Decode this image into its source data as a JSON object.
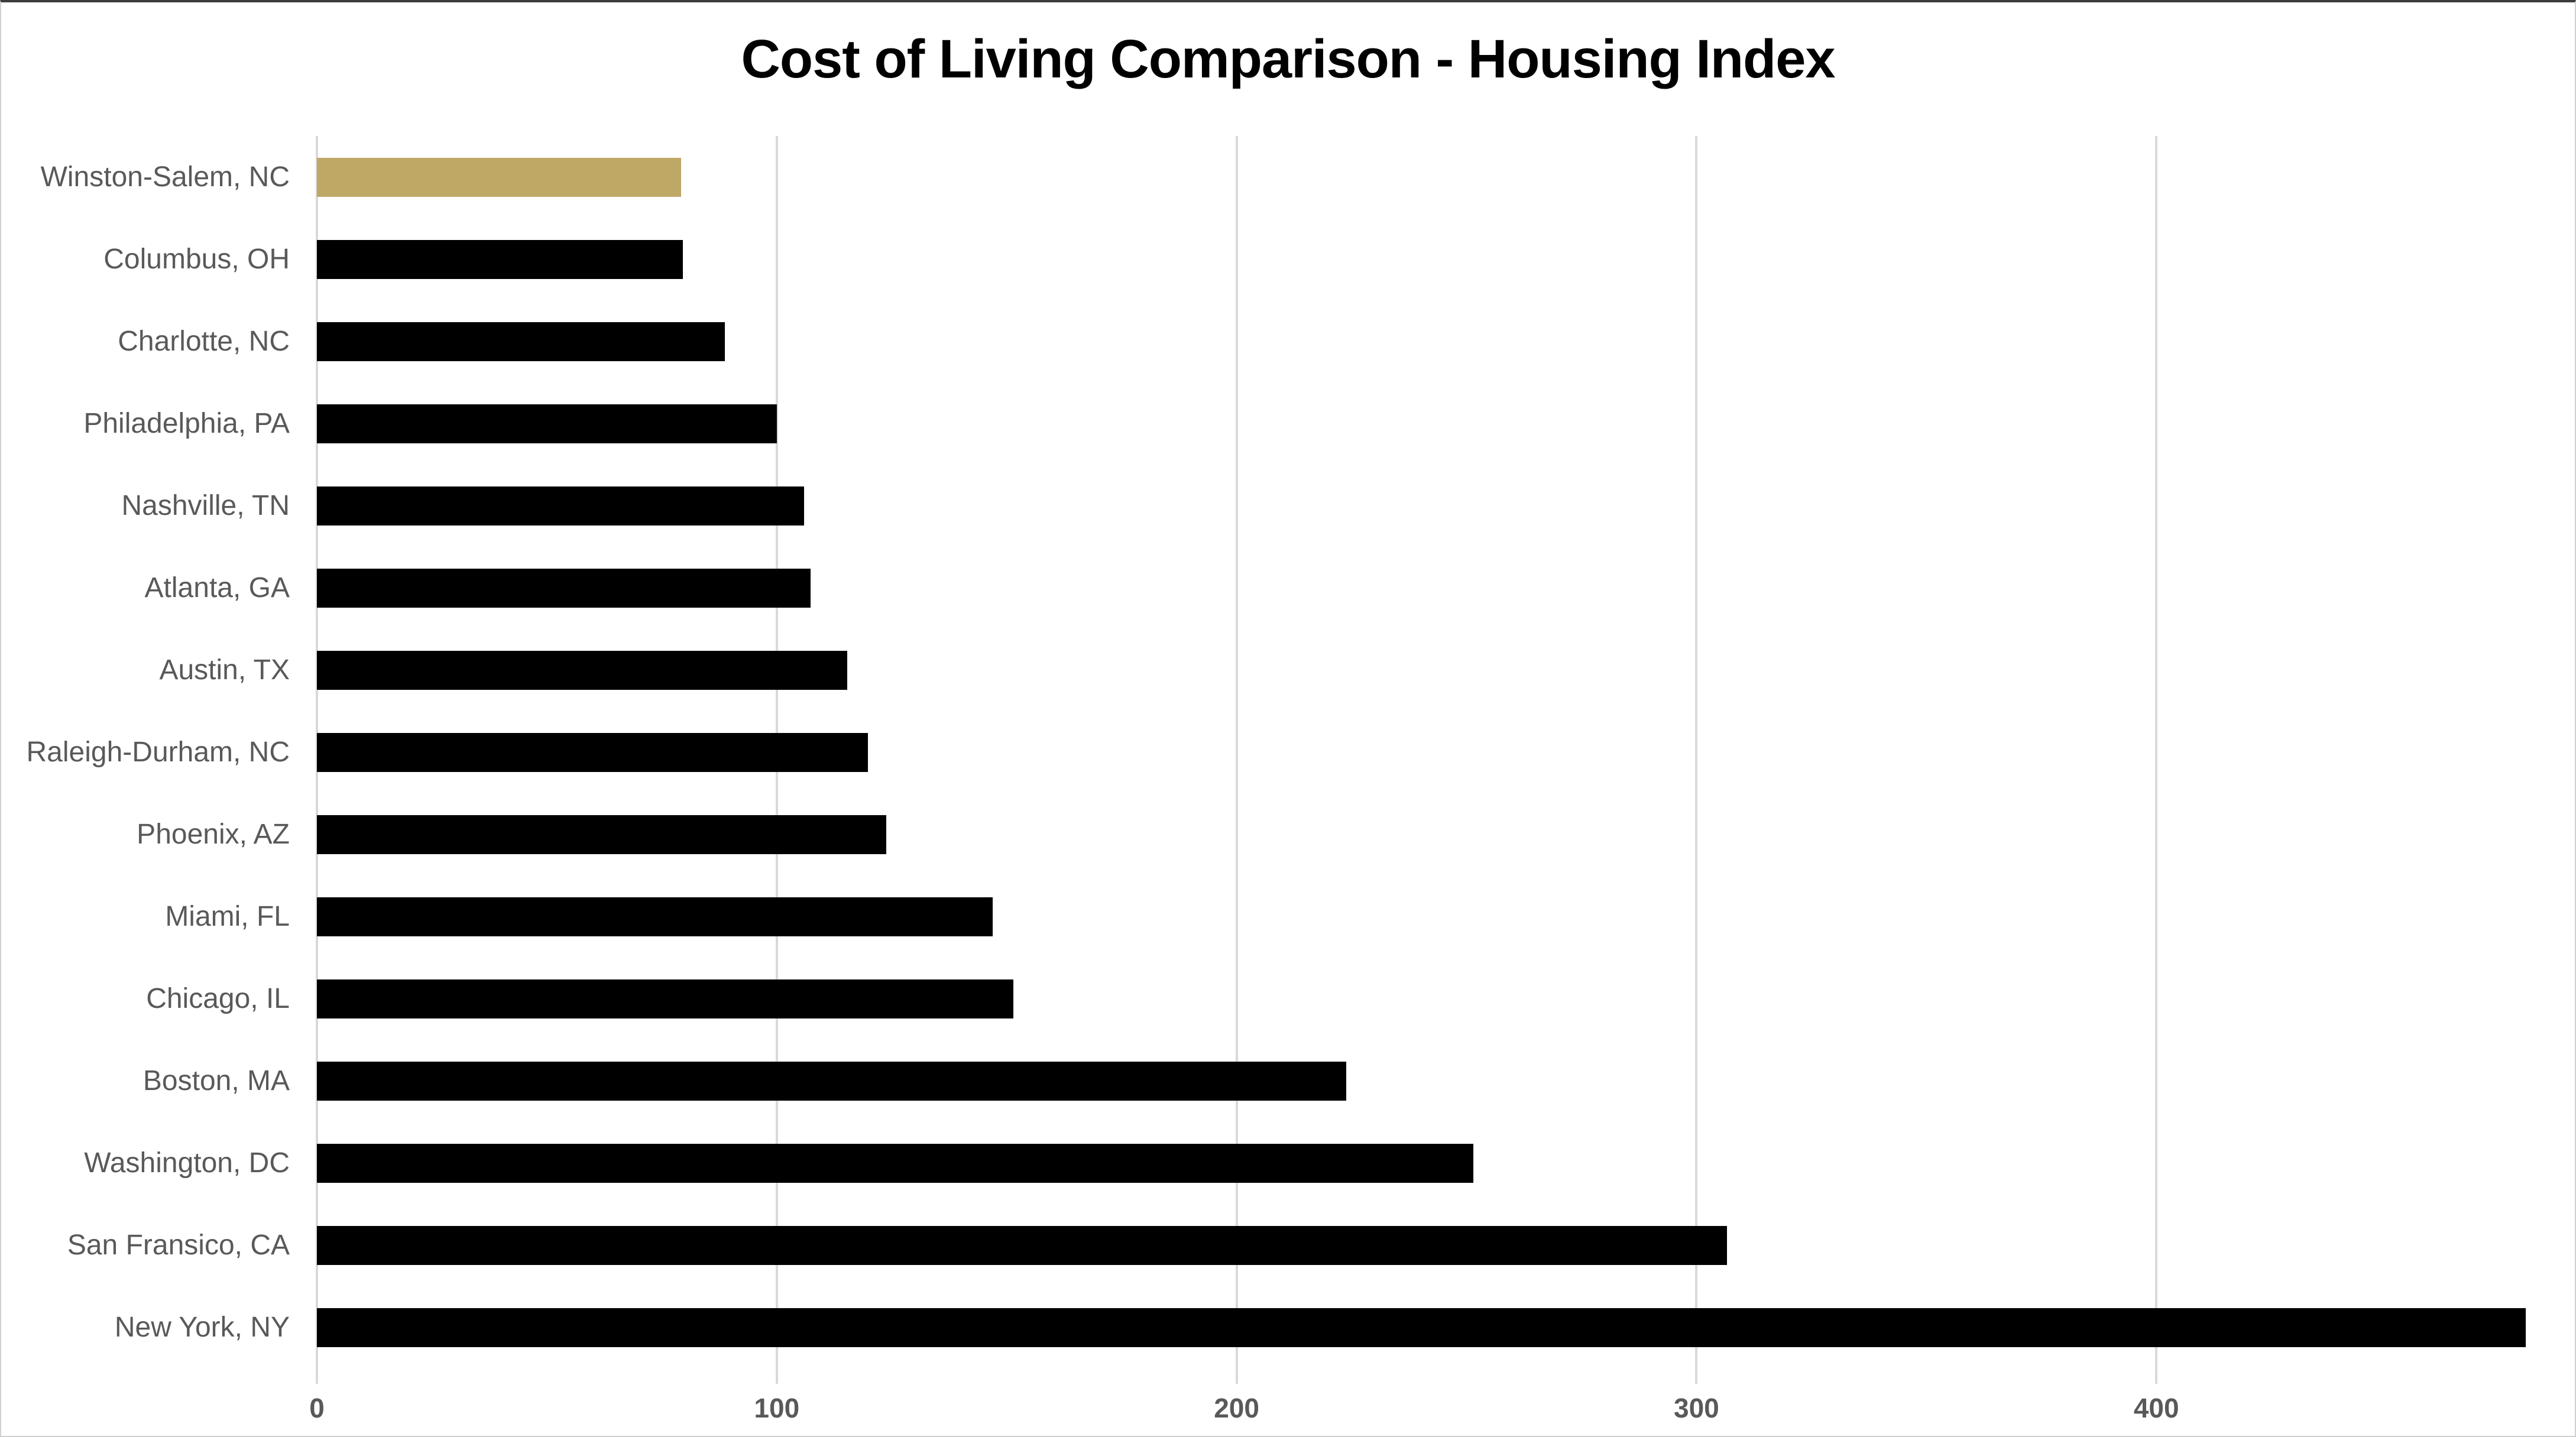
{
  "chart_data": {
    "type": "bar",
    "orientation": "horizontal",
    "title": "Cost of Living Comparison - Housing Index",
    "categories": [
      "Winston-Salem, NC",
      "Columbus, OH",
      "Charlotte, NC",
      "Philadelphia, PA",
      "Nashville, TN",
      "Atlanta, GA",
      "Austin, TX",
      "Raleigh-Durham, NC",
      "Phoenix, AZ",
      "Miami, FL",
      "Chicago, IL",
      "Boston, MA",
      "Washington, DC",
      "San Fransico, CA",
      "New York, NY"
    ],
    "values": [
      79.2,
      79.6,
      88.7,
      100,
      106,
      107.3,
      115.3,
      119.8,
      123.8,
      147,
      151.4,
      223.8,
      251.5,
      306.6,
      480.3
    ],
    "xlabel": "",
    "ylabel": "",
    "xlim": [
      0,
      491
    ],
    "x_ticks": [
      0,
      100,
      200,
      300,
      400
    ],
    "grid": true,
    "legend": false,
    "highlight_category": "Winston-Salem, NC",
    "colors": {
      "highlight": "#BFA766",
      "default": "#000000",
      "grid": "#D9D9D9",
      "label": "#595959",
      "title": "#000000"
    }
  }
}
